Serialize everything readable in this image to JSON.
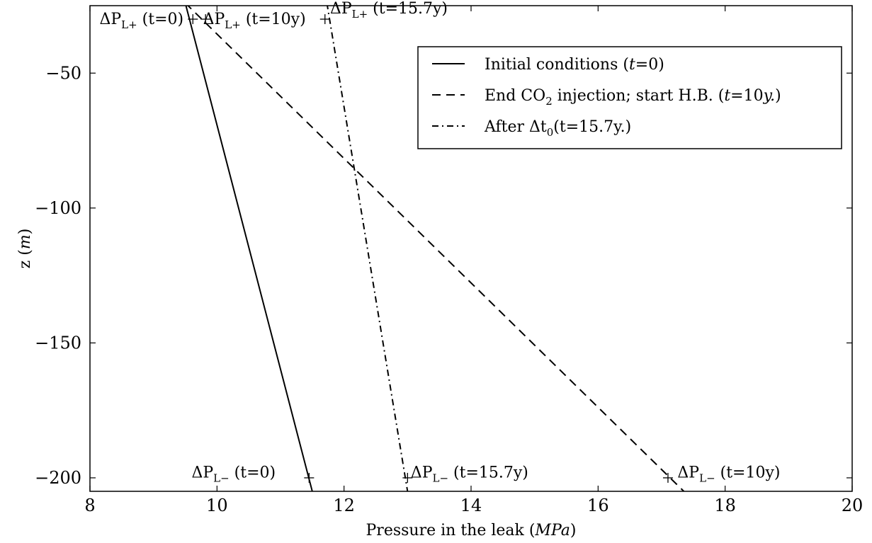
{
  "chart_data": {
    "type": "line",
    "xlabel": "Pressure in the leak (MPa)",
    "xlabel_parts": {
      "text": "Pressure in the leak (",
      "unit": "MPa",
      "close": ")"
    },
    "ylabel": "z (m)",
    "ylabel_parts": {
      "text": "z (",
      "unit": "m",
      "close": ")"
    },
    "xlim": [
      8,
      20
    ],
    "ylim": [
      -205,
      -25
    ],
    "xticks": [
      8,
      10,
      12,
      14,
      16,
      18,
      20
    ],
    "xtick_labels": [
      "8",
      "10",
      "12",
      "14",
      "16",
      "18",
      "20"
    ],
    "yticks": [
      -50,
      -100,
      -150,
      -200
    ],
    "ytick_labels": [
      "−50",
      "−100",
      "−150",
      "−200"
    ],
    "grid": false,
    "legend_position": "top-right",
    "series": [
      {
        "name": "Initial conditions (t=0)",
        "style": "solid",
        "x": [
          9.5,
          11.5
        ],
        "y": [
          -24,
          -205
        ]
      },
      {
        "name": "End CO2 injection; start H.B. (t=10y.)",
        "style": "dashed",
        "x": [
          9.5,
          17.35
        ],
        "y": [
          -24,
          -205
        ]
      },
      {
        "name": "After Δt0 (t=15.7y.)",
        "style": "dashdot",
        "x": [
          11.73,
          13.0
        ],
        "y": [
          -24,
          -205
        ]
      }
    ],
    "legend": [
      {
        "text": "Initial conditions (",
        "italic": "t",
        "rest": "=0)"
      },
      {
        "text": "End CO",
        "sub": "2",
        "text2": " injection; start H.B. (",
        "italic": "t",
        "rest": "=10",
        "italic2": "y.",
        "rest2": ")"
      },
      {
        "text": "After Δt",
        "sub": "0",
        "rest": "(t=15.7y.)"
      }
    ],
    "markers": [
      {
        "x": 9.62,
        "y": -30
      },
      {
        "x": 9.82,
        "y": -30
      },
      {
        "x": 11.7,
        "y": -30
      },
      {
        "x": 11.45,
        "y": -200
      },
      {
        "x": 13.0,
        "y": -200
      },
      {
        "x": 17.1,
        "y": -200
      }
    ],
    "annotations": [
      {
        "main": "ΔP",
        "sub": "L+",
        "rest": " (t=0)",
        "x": 8.15,
        "y": -30
      },
      {
        "main": "ΔP",
        "sub": "L+",
        "rest": " (t=10y)",
        "x": 9.78,
        "y": -30
      },
      {
        "main": "ΔP",
        "sub": "L+",
        "rest": " (t=15.7y)",
        "x": 11.78,
        "y": -26
      },
      {
        "main": "ΔP",
        "sub": "L−",
        "rest": " (t=0)",
        "x": 9.6,
        "y": -198
      },
      {
        "main": "ΔP",
        "sub": "L−",
        "rest": " (t=15.7y)",
        "x": 13.05,
        "y": -198
      },
      {
        "main": "ΔP",
        "sub": "L−",
        "rest": " (t=10y)",
        "x": 17.25,
        "y": -198
      }
    ]
  }
}
